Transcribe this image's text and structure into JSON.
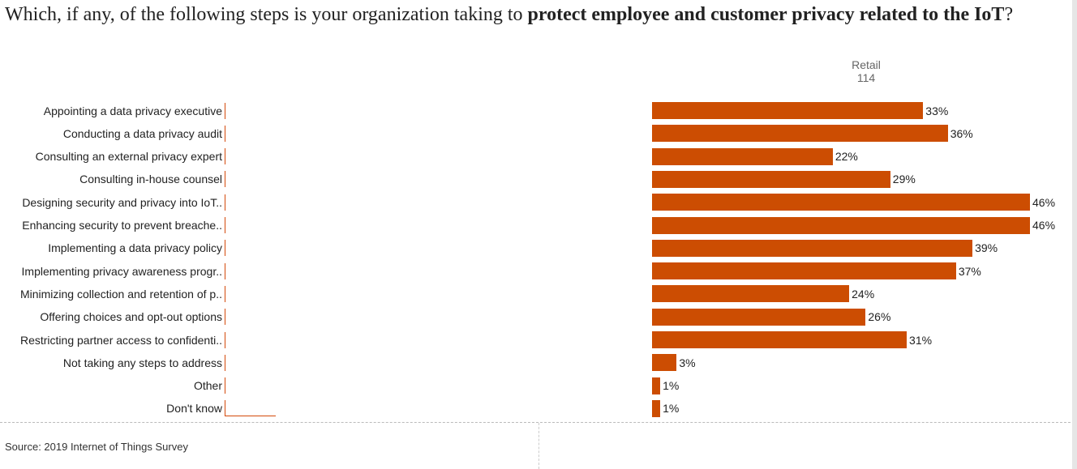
{
  "title": {
    "prefix": "Which, if any, of the following steps is your organization taking to ",
    "bold": "protect employee and customer privacy related to the IoT",
    "suffix": "?"
  },
  "column_header": {
    "name": "Retail",
    "count": "114"
  },
  "footer": {
    "source": "Source: 2019 Internet of Things Survey"
  },
  "colors": {
    "bar": "#cc4d02",
    "axis": "#d4490a"
  },
  "chart_data": {
    "type": "bar",
    "orientation": "horizontal",
    "categories": [
      "Appointing a data privacy executive",
      "Conducting a data privacy audit",
      "Consulting an external privacy expert",
      "Consulting in-house counsel",
      "Designing security and privacy into IoT..",
      "Enhancing security to prevent breache..",
      "Implementing a data privacy policy",
      "Implementing privacy awareness progr..",
      "Minimizing collection and retention of p..",
      "Offering choices and opt-out options",
      "Restricting partner access to confidenti..",
      "Not taking any steps to address",
      "Other",
      "Don't know"
    ],
    "series": [
      {
        "name": "Retail",
        "values": [
          33,
          36,
          22,
          29,
          46,
          46,
          39,
          37,
          24,
          26,
          31,
          3,
          1,
          1
        ]
      }
    ],
    "value_labels": [
      "33%",
      "36%",
      "22%",
      "29%",
      "46%",
      "46%",
      "39%",
      "37%",
      "24%",
      "26%",
      "31%",
      "3%",
      "1%",
      "1%"
    ],
    "xlim": [
      0,
      46
    ]
  }
}
